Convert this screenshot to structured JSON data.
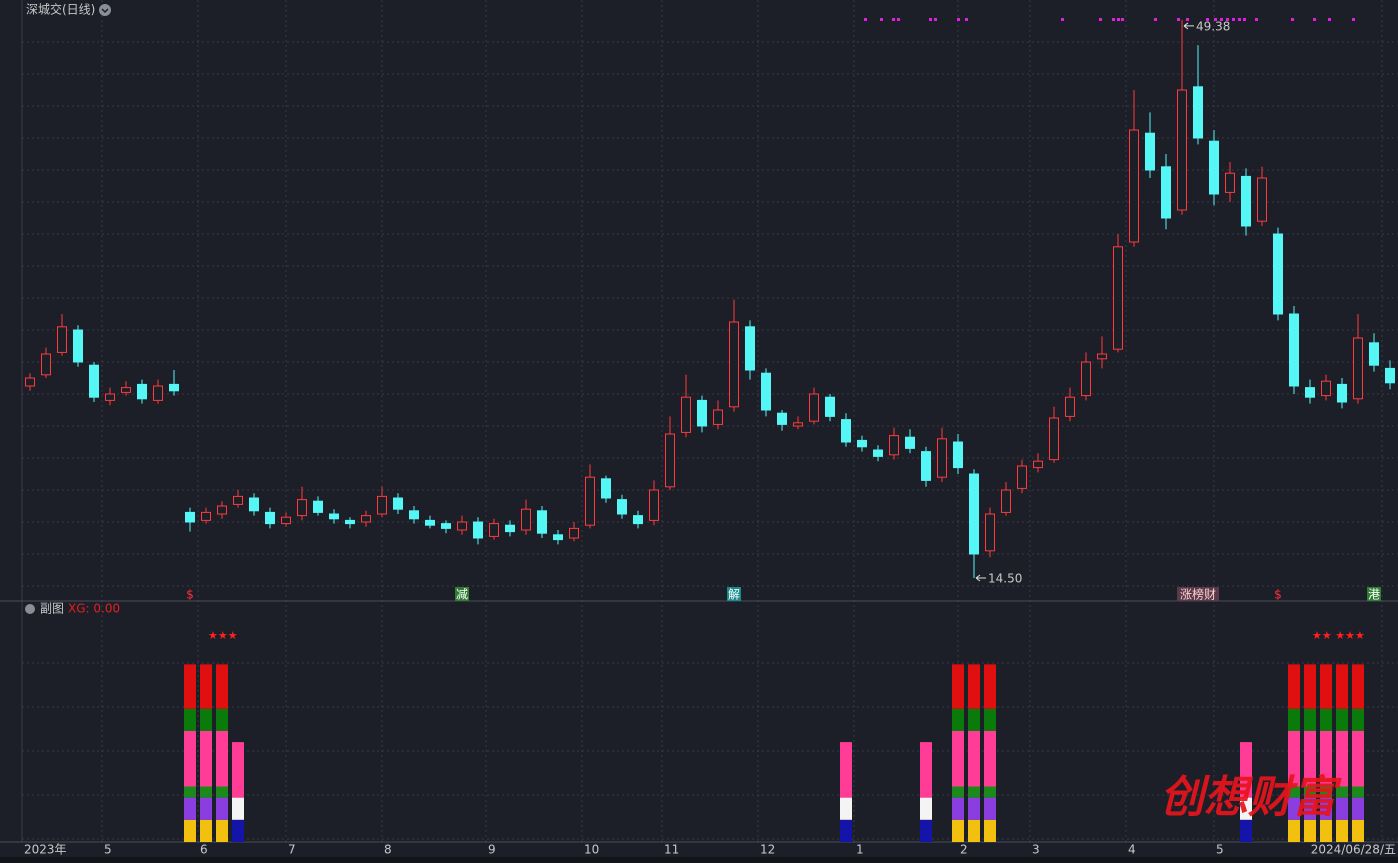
{
  "title": "深城交(日线)",
  "subchart_title": "副图",
  "indicator_label": "XG: 0.00",
  "stars": [
    "★★★",
    "★★ ★★★"
  ],
  "watermark": "创想财富",
  "chart_data": [
    {
      "type": "candlestick",
      "up_color": "#ff3a3a",
      "down_color": "#54f6f6",
      "ylim": [
        13.125,
        50.625
      ],
      "open": [
        26.5,
        27.2,
        28.6,
        30.0,
        27.8,
        25.6,
        26.1,
        26.6,
        25.6,
        26.6,
        18.6,
        18.1,
        18.5,
        19.1,
        19.5,
        18.6,
        17.9,
        18.4,
        19.3,
        18.5,
        18.1,
        18.0,
        18.5,
        19.5,
        18.7,
        18.1,
        17.9,
        17.5,
        18.0,
        17.1,
        17.8,
        17.5,
        18.7,
        17.2,
        17.0,
        17.8,
        20.7,
        19.4,
        18.4,
        18.1,
        20.2,
        23.6,
        25.6,
        24.1,
        25.2,
        30.2,
        27.3,
        24.8,
        24.0,
        24.3,
        25.8,
        24.4,
        23.1,
        22.5,
        22.2,
        23.3,
        22.4,
        20.8,
        23.0,
        21.0,
        16.2,
        18.6,
        20.1,
        21.4,
        21.9,
        24.6,
        25.9,
        28.2,
        28.8,
        35.5,
        42.3,
        40.2,
        37.5,
        45.2,
        41.8,
        38.6,
        39.6,
        36.8,
        36.0,
        31.0,
        26.4,
        25.9,
        26.6,
        25.7,
        29.2,
        27.6
      ],
      "high": [
        27.3,
        28.9,
        31.0,
        30.3,
        28.0,
        26.4,
        26.8,
        26.9,
        26.9,
        27.5,
        18.9,
        18.9,
        19.3,
        20.0,
        19.8,
        18.9,
        18.6,
        20.2,
        19.6,
        18.8,
        18.3,
        18.7,
        20.2,
        19.8,
        19.0,
        18.4,
        18.1,
        18.4,
        18.3,
        18.2,
        18.1,
        19.4,
        19.0,
        17.5,
        18.0,
        21.6,
        20.9,
        19.7,
        18.7,
        20.6,
        24.6,
        27.2,
        25.9,
        25.6,
        31.9,
        30.6,
        27.6,
        25.0,
        24.6,
        26.4,
        26.0,
        24.8,
        23.4,
        22.8,
        23.9,
        23.8,
        22.7,
        23.9,
        23.5,
        21.3,
        18.9,
        20.5,
        21.9,
        22.3,
        25.2,
        26.4,
        28.6,
        29.6,
        36.0,
        45.0,
        43.6,
        41.0,
        49.38,
        47.8,
        42.5,
        40.5,
        40.1,
        40.2,
        36.4,
        31.5,
        26.9,
        27.2,
        27.0,
        31.0,
        29.8,
        28.1
      ],
      "low": [
        26.2,
        27.0,
        28.4,
        27.7,
        25.5,
        25.3,
        25.9,
        25.4,
        25.4,
        25.9,
        17.4,
        17.9,
        18.2,
        18.9,
        18.4,
        17.6,
        17.7,
        18.1,
        18.4,
        17.9,
        17.6,
        17.7,
        18.3,
        18.5,
        17.9,
        17.6,
        17.3,
        17.2,
        16.6,
        16.9,
        17.1,
        17.2,
        17.0,
        16.6,
        16.8,
        17.6,
        19.2,
        18.2,
        17.6,
        17.8,
        20.0,
        23.3,
        23.6,
        23.8,
        24.9,
        26.9,
        24.6,
        23.7,
        23.8,
        24.1,
        24.3,
        22.7,
        22.4,
        21.8,
        21.9,
        22.3,
        20.2,
        20.5,
        21.0,
        14.5,
        15.8,
        18.4,
        19.8,
        21.1,
        21.7,
        24.3,
        25.6,
        27.6,
        28.6,
        35.2,
        39.5,
        36.3,
        37.2,
        41.6,
        37.8,
        38.0,
        35.9,
        36.5,
        30.6,
        26.0,
        25.4,
        25.6,
        25.1,
        25.4,
        27.4,
        26.3
      ],
      "close": [
        27.0,
        28.5,
        30.2,
        28.0,
        25.8,
        26.0,
        26.4,
        25.7,
        26.5,
        26.2,
        18.0,
        18.6,
        19.0,
        19.6,
        18.7,
        17.9,
        18.3,
        19.4,
        18.6,
        18.2,
        17.9,
        18.4,
        19.6,
        18.8,
        18.2,
        17.8,
        17.6,
        18.0,
        17.0,
        17.9,
        17.4,
        18.8,
        17.3,
        16.9,
        17.6,
        20.8,
        19.5,
        18.5,
        17.9,
        20.0,
        23.5,
        25.8,
        24.0,
        25.0,
        30.5,
        27.5,
        25.0,
        24.1,
        24.2,
        26.0,
        24.6,
        23.0,
        22.7,
        22.1,
        23.4,
        22.6,
        20.6,
        23.2,
        21.4,
        16.0,
        18.5,
        20.0,
        21.5,
        21.8,
        24.5,
        25.8,
        28.0,
        28.5,
        35.2,
        42.5,
        40.0,
        37.0,
        45.0,
        42.0,
        38.5,
        39.8,
        36.5,
        39.5,
        31.0,
        26.5,
        25.8,
        26.8,
        25.5,
        29.5,
        27.8,
        26.7
      ],
      "extremes": [
        {
          "index": 72,
          "field": "high",
          "label": "49.38"
        },
        {
          "index": 59,
          "field": "low",
          "label": "14.50"
        }
      ],
      "markers": [
        {
          "index": 10,
          "label": "$",
          "color": "#ff3030"
        },
        {
          "index": 27,
          "label": "减",
          "color": "#ffffff",
          "bg": "#2e7d32"
        },
        {
          "index": 44,
          "label": "解",
          "color": "#ffffff",
          "bg": "#178a8a"
        },
        {
          "index": 73,
          "label": "涨榜财",
          "color": "#ffd0d0",
          "bg": "#5a3a4a"
        },
        {
          "index": 78,
          "label": "$",
          "color": "#ff3030"
        },
        {
          "index": 84,
          "label": "港",
          "color": "#ffffff",
          "bg": "#2e7d32"
        }
      ],
      "xticks": [
        {
          "value": 0,
          "label": "2023年"
        },
        {
          "value": 5,
          "label": "5"
        },
        {
          "value": 11,
          "label": "6"
        },
        {
          "value": 16.5,
          "label": "7"
        },
        {
          "value": 22.5,
          "label": "8"
        },
        {
          "value": 29,
          "label": "9"
        },
        {
          "value": 35,
          "label": "10"
        },
        {
          "value": 40,
          "label": "11"
        },
        {
          "value": 46,
          "label": "12"
        },
        {
          "value": 52,
          "label": "1"
        },
        {
          "value": 58.5,
          "label": "2"
        },
        {
          "value": 63,
          "label": "3"
        },
        {
          "value": 69,
          "label": "4"
        },
        {
          "value": 74.5,
          "label": "5"
        },
        {
          "value": 85,
          "label": "2024/06/28/五"
        }
      ]
    },
    {
      "type": "bar",
      "stacked": true,
      "ylim": [
        0,
        10
      ],
      "x": [
        10,
        11,
        12,
        13,
        51,
        56,
        58,
        59,
        60,
        76,
        79,
        80,
        81,
        82,
        83
      ],
      "series": [
        {
          "color": "#f2c10f",
          "values": [
            1,
            1,
            1,
            null,
            null,
            null,
            1,
            1,
            1,
            null,
            1,
            1,
            1,
            1,
            1
          ]
        },
        {
          "color": "#1414a8",
          "values": [
            null,
            null,
            null,
            1,
            1,
            1,
            null,
            null,
            null,
            1,
            null,
            null,
            null,
            null,
            null
          ]
        },
        {
          "color": "#8a3ee0",
          "values": [
            1,
            1,
            1,
            null,
            null,
            null,
            1,
            1,
            1,
            null,
            1,
            1,
            1,
            1,
            1
          ]
        },
        {
          "color": "#f4f4f4",
          "values": [
            null,
            null,
            null,
            1,
            1,
            1,
            null,
            null,
            null,
            1,
            null,
            null,
            null,
            null,
            null
          ]
        },
        {
          "color": "#1a8a1a",
          "values": [
            0.5,
            0.5,
            0.5,
            null,
            null,
            null,
            0.5,
            0.5,
            0.5,
            null,
            0.5,
            0.5,
            0.5,
            0.5,
            0.5
          ]
        },
        {
          "color": "#ff3d97",
          "values": [
            2.5,
            2.5,
            2.5,
            2.5,
            2.5,
            2.5,
            2.5,
            2.5,
            2.5,
            2.5,
            2.5,
            2.5,
            2.5,
            2.5,
            2.5
          ]
        },
        {
          "color": "#0a7a0a",
          "values": [
            1,
            1,
            1,
            null,
            null,
            null,
            1,
            1,
            1,
            null,
            1,
            1,
            1,
            1,
            1
          ]
        },
        {
          "color": "#e01010",
          "values": [
            2,
            2,
            2,
            null,
            null,
            null,
            2,
            2,
            2,
            null,
            2,
            2,
            2,
            2,
            2
          ]
        }
      ]
    }
  ]
}
